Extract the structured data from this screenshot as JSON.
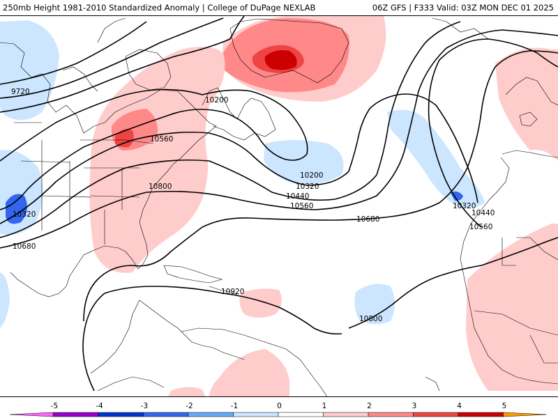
{
  "header": {
    "left_text": "250mb Height 1981-2010 Standardized Anomaly | College of DuPage NEXLAB",
    "right_text": "06Z GFS | F333 Valid: 03Z MON DEC 01 2025"
  },
  "contour_labels": [
    "9720",
    "10200",
    "10560",
    "10800",
    "10320",
    "10680",
    "10200",
    "10320",
    "10440",
    "10560",
    "10680",
    "10920",
    "10800",
    "10320",
    "10440",
    "10560"
  ],
  "colorbar": {
    "tick_labels": [
      "-5",
      "-4",
      "-3",
      "-2",
      "-1",
      "0",
      "1",
      "2",
      "3",
      "4",
      "5"
    ],
    "colors": {
      "m5": "#ff66ff",
      "m4": "#9900cc",
      "m3": "#0033cc",
      "m2": "#3366ee",
      "m1": "#66aaff",
      "m0": "#cce6ff",
      "p0": "#ffffff",
      "p1": "#ffcccc",
      "p2": "#ff8888",
      "p3": "#ee4444",
      "p4": "#cc0000",
      "p5": "#ff9900"
    }
  }
}
